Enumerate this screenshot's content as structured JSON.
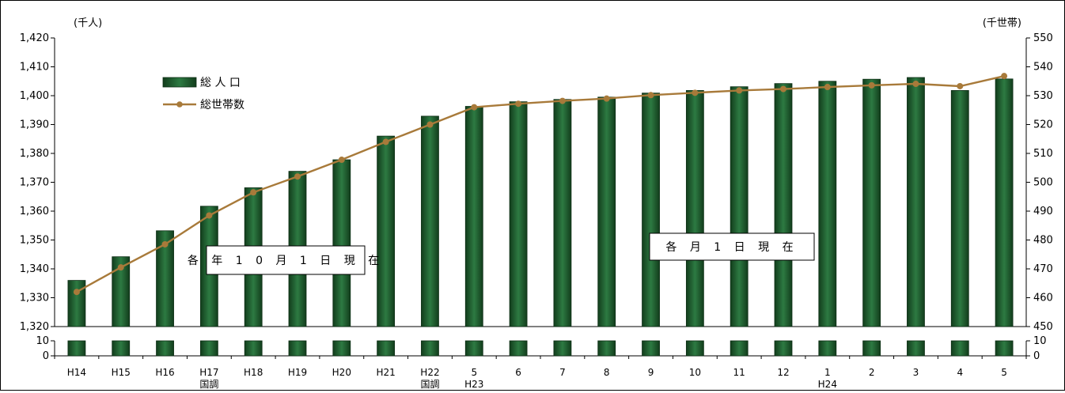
{
  "chart_data": {
    "type": "bar",
    "left_unit": "(千人)",
    "right_unit": "(千世帯)",
    "categories": [
      "H14",
      "H15",
      "H16",
      "H17",
      "H18",
      "H19",
      "H20",
      "H21",
      "H22",
      "5",
      "6",
      "7",
      "8",
      "9",
      "10",
      "11",
      "12",
      "1",
      "2",
      "3",
      "4",
      "5"
    ],
    "category_sublabels": [
      "",
      "",
      "",
      "国調",
      "",
      "",
      "",
      "",
      "国調",
      "H23",
      "",
      "",
      "",
      "",
      "",
      "",
      "",
      "H24",
      "",
      "",
      "",
      ""
    ],
    "series": [
      {
        "name": "総 人 口",
        "type": "bar",
        "axis": "left",
        "color": "#1e5a2e",
        "values": [
          1336,
          1344.2,
          1353.2,
          1361.7,
          1368.1,
          1373.8,
          1377.8,
          1386.0,
          1392.9,
          1396.3,
          1397.9,
          1398.7,
          1399.5,
          1400.9,
          1401.8,
          1403.1,
          1404.2,
          1405.0,
          1405.7,
          1406.3,
          1401.8,
          1405.8
        ]
      },
      {
        "name": "総世帯数",
        "type": "line",
        "axis": "right",
        "color": "#a87a3a",
        "values": [
          462.0,
          470.5,
          478.5,
          488.5,
          496.5,
          502.0,
          507.8,
          514.0,
          520.0,
          526.0,
          527.2,
          528.2,
          529.0,
          530.2,
          531.0,
          531.8,
          532.3,
          533.0,
          533.6,
          534.1,
          533.3,
          536.8
        ]
      }
    ],
    "left_axis": {
      "ylim": [
        1320,
        1420
      ],
      "ticks": [
        "1,320",
        "1,330",
        "1,340",
        "1,350",
        "1,360",
        "1,370",
        "1,380",
        "1,390",
        "1,400",
        "1,410",
        "1,420"
      ]
    },
    "right_axis": {
      "ylim": [
        450,
        550
      ],
      "ticks": [
        "450",
        "460",
        "470",
        "480",
        "490",
        "500",
        "510",
        "520",
        "530",
        "540",
        "550"
      ]
    },
    "break_axis": {
      "left_ticks": [
        "0",
        "10"
      ],
      "right_ticks": [
        "0",
        "10"
      ]
    },
    "annotations": [
      "各 年 1 0 月 1 日 現 在",
      "各 月 1 日 現 在"
    ],
    "legend_placement": "top-left",
    "grid": false
  }
}
